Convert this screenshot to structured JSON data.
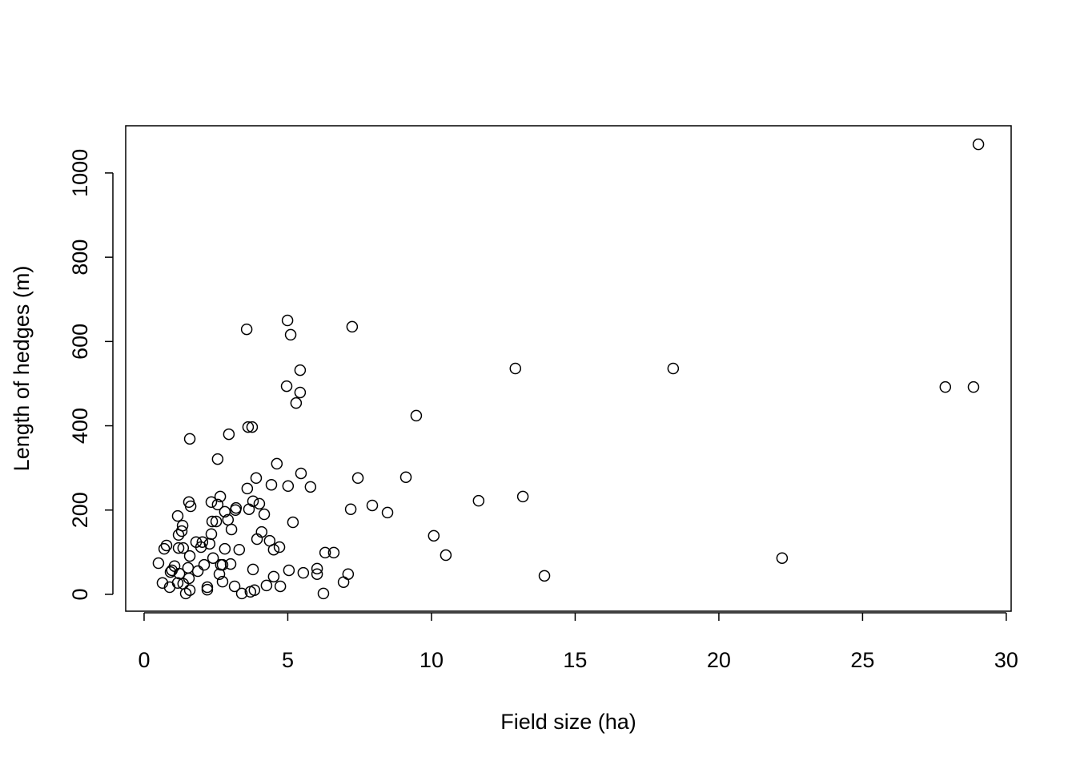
{
  "chart_data": {
    "type": "scatter",
    "xlabel": "Field size (ha)",
    "ylabel": "Length of hedges (m)",
    "color": "#000000",
    "marker": "open-circle",
    "xlim": [
      -0.64,
      30.17
    ],
    "ylim": [
      -40,
      1112
    ],
    "xticks": [
      0,
      5,
      10,
      15,
      20,
      25,
      30
    ],
    "yticks": [
      0,
      200,
      400,
      600,
      800,
      1000
    ],
    "x": [
      29.03,
      27.88,
      28.86,
      18.41,
      12.92,
      22.2,
      13.93,
      13.18,
      11.64,
      10.5,
      10.08,
      9.47,
      9.11,
      8.47,
      7.94,
      7.44,
      7.19,
      7.24,
      7.1,
      6.94,
      6.6,
      6.3,
      6.24,
      6.02,
      6.02,
      5.79,
      5.54,
      5.46,
      5.43,
      5.43,
      5.29,
      5.18,
      5.1,
      4.99,
      4.96,
      5.01,
      5.04,
      4.74,
      4.71,
      4.62,
      4.51,
      4.51,
      4.43,
      4.37,
      4.26,
      4.18,
      4.09,
      4.01,
      3.9,
      3.93,
      3.79,
      3.76,
      3.62,
      3.57,
      3.59,
      3.65,
      3.79,
      3.84,
      3.7,
      3.4,
      3.31,
      3.15,
      3.18,
      3.2,
      3.04,
      3.01,
      2.92,
      2.95,
      2.81,
      2.81,
      2.73,
      2.73,
      2.67,
      2.65,
      2.62,
      2.56,
      2.56,
      2.51,
      2.37,
      2.4,
      2.34,
      2.34,
      2.28,
      2.2,
      2.2,
      2.03,
      2.09,
      1.98,
      1.81,
      1.87,
      1.62,
      1.56,
      1.59,
      1.59,
      1.53,
      1.59,
      1.56,
      1.45,
      1.36,
      1.36,
      1.34,
      1.31,
      1.2,
      1.2,
      1.17,
      1.23,
      1.17,
      1.06,
      0.97,
      0.92,
      0.89,
      0.78,
      0.7,
      0.64,
      0.5
    ],
    "y": [
      1068,
      492,
      492,
      536,
      536,
      86,
      44,
      232,
      222,
      93,
      139,
      424,
      278,
      194,
      211,
      276,
      202,
      635,
      48,
      29,
      99,
      99,
      2,
      61,
      48,
      255,
      51,
      287,
      479,
      532,
      454,
      171,
      616,
      650,
      494,
      257,
      57,
      19,
      112,
      310,
      106,
      42,
      260,
      127,
      21,
      190,
      148,
      215,
      276,
      131,
      221,
      397,
      397,
      629,
      251,
      202,
      59,
      10,
      6,
      2,
      106,
      19,
      200,
      205,
      154,
      72,
      177,
      380,
      196,
      108,
      70,
      30,
      70,
      232,
      48,
      213,
      321,
      173,
      173,
      86,
      143,
      219,
      120,
      17,
      11,
      124,
      70,
      112,
      124,
      55,
      209,
      219,
      369,
      91,
      63,
      10,
      38,
      2,
      25,
      110,
      163,
      150,
      141,
      110,
      186,
      49,
      27,
      67,
      57,
      53,
      17,
      116,
      108,
      27,
      74
    ]
  }
}
